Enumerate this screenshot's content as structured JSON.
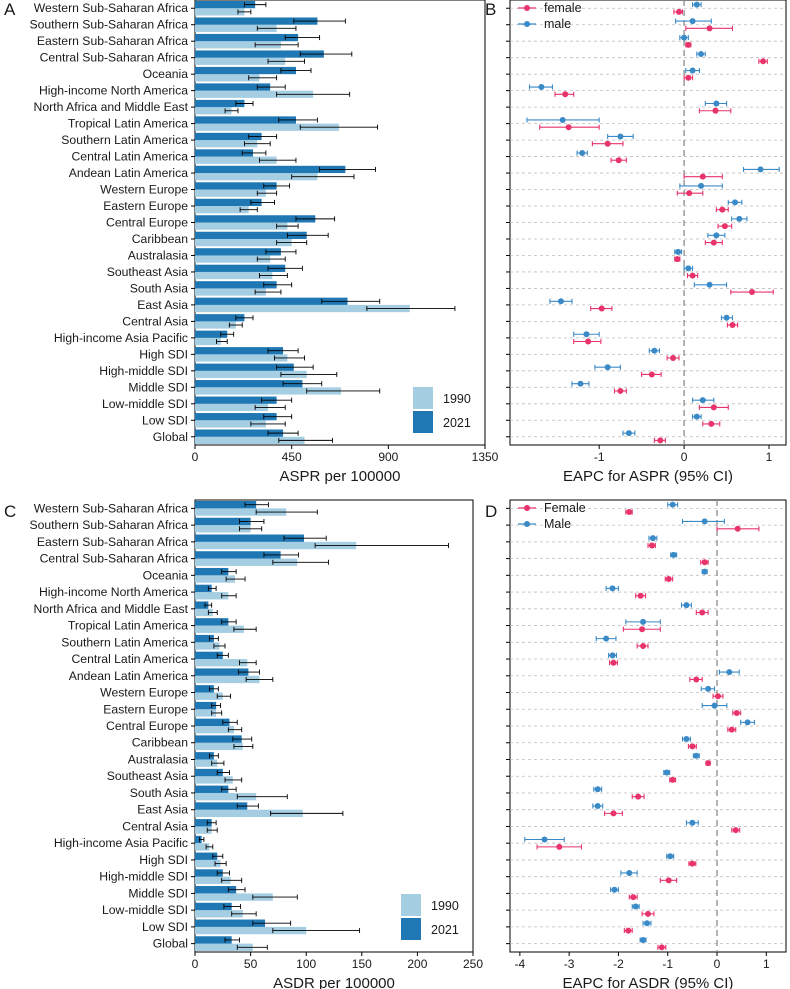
{
  "colors": {
    "bar_1990": "#a6cee3",
    "bar_2021": "#1f78b4",
    "female": "#e8336b",
    "male": "#3a8ac8",
    "gridline": "#bdbdbd",
    "zero_line": "#8c8c8c",
    "text": "#1a1a1a"
  },
  "regions": [
    "Western Sub-Saharan Africa",
    "Southern Sub-Saharan Africa",
    "Eastern Sub-Saharan Africa",
    "Central Sub-Saharan Africa",
    "Oceania",
    "High-income North America",
    "North Africa and Middle East",
    "Tropical Latin America",
    "Southern Latin America",
    "Central Latin America",
    "Andean Latin America",
    "Western Europe",
    "Eastern Europe",
    "Central Europe",
    "Caribbean",
    "Australasia",
    "Southeast Asia",
    "South Asia",
    "East Asia",
    "Central Asia",
    "High-income Asia Pacific",
    "High SDI",
    "High-middle SDI",
    "Middle SDI",
    "Low-middle SDI",
    "Low SDI",
    "Global"
  ],
  "chart_data": [
    {
      "panel": "A",
      "type": "bar",
      "orientation": "horizontal",
      "xlabel": "ASPR per 100000",
      "xlim": [
        0,
        1350
      ],
      "xticks": [
        0,
        450,
        900,
        1350
      ],
      "legend": {
        "title": "",
        "entries": [
          "1990",
          "2021"
        ],
        "position": "bottom-right"
      },
      "series": [
        {
          "name": "1990",
          "values": [
            230,
            380,
            400,
            420,
            300,
            550,
            170,
            670,
            290,
            380,
            570,
            330,
            250,
            430,
            450,
            350,
            360,
            330,
            1000,
            190,
            120,
            430,
            520,
            680,
            340,
            330,
            510
          ],
          "err_low": [
            200,
            290,
            280,
            340,
            250,
            380,
            140,
            490,
            230,
            300,
            450,
            290,
            210,
            380,
            380,
            290,
            300,
            280,
            800,
            160,
            100,
            370,
            400,
            520,
            280,
            260,
            390
          ],
          "err_high": [
            260,
            470,
            480,
            510,
            380,
            720,
            200,
            850,
            350,
            470,
            740,
            380,
            290,
            480,
            520,
            420,
            430,
            400,
            1210,
            220,
            150,
            510,
            660,
            860,
            420,
            420,
            640
          ]
        },
        {
          "name": "2021",
          "values": [
            280,
            570,
            480,
            600,
            470,
            350,
            230,
            470,
            310,
            270,
            700,
            380,
            310,
            560,
            520,
            400,
            420,
            380,
            710,
            230,
            150,
            410,
            460,
            500,
            380,
            380,
            410
          ],
          "err_low": [
            230,
            460,
            420,
            490,
            400,
            290,
            190,
            390,
            250,
            220,
            580,
            320,
            260,
            470,
            430,
            330,
            340,
            320,
            590,
            190,
            120,
            340,
            380,
            410,
            310,
            320,
            340
          ],
          "err_high": [
            330,
            700,
            580,
            730,
            540,
            420,
            270,
            570,
            380,
            330,
            840,
            440,
            370,
            650,
            620,
            470,
            500,
            450,
            860,
            270,
            180,
            480,
            550,
            590,
            450,
            450,
            480
          ]
        }
      ]
    },
    {
      "panel": "B",
      "type": "scatter",
      "xlabel": "EAPC for ASPR (95% CI)",
      "xlim": [
        -2.05,
        1.2
      ],
      "xticks": [
        -1,
        0,
        1
      ],
      "legend": {
        "entries": [
          "female",
          "male"
        ],
        "position": "top-left"
      },
      "series": [
        {
          "name": "female",
          "values": [
            -0.06,
            0.3,
            0.05,
            0.93,
            0.05,
            -1.4,
            0.37,
            -1.36,
            -0.9,
            -0.77,
            0.22,
            0.06,
            0.45,
            0.48,
            0.35,
            -0.08,
            0.1,
            0.8,
            -0.97,
            0.57,
            -1.13,
            -0.13,
            -0.38,
            -0.75,
            0.35,
            0.32,
            -0.28
          ],
          "err_low": [
            -0.12,
            0.02,
            0.02,
            0.88,
            0.0,
            -1.52,
            0.18,
            -1.7,
            -1.08,
            -0.86,
            0.0,
            -0.08,
            0.38,
            0.4,
            0.25,
            -0.11,
            0.04,
            0.55,
            -1.1,
            0.51,
            -1.3,
            -0.2,
            -0.5,
            -0.82,
            0.18,
            0.22,
            -0.35
          ],
          "err_high": [
            -0.02,
            0.57,
            0.08,
            0.98,
            0.1,
            -1.3,
            0.55,
            -1.0,
            -0.72,
            -0.68,
            0.45,
            0.22,
            0.52,
            0.56,
            0.45,
            -0.05,
            0.16,
            1.05,
            -0.85,
            0.63,
            -0.98,
            -0.06,
            -0.27,
            -0.68,
            0.52,
            0.42,
            -0.22
          ]
        },
        {
          "name": "male",
          "values": [
            0.15,
            0.1,
            0.0,
            0.2,
            0.1,
            -1.68,
            0.38,
            -1.43,
            -0.75,
            -1.2,
            0.9,
            0.2,
            0.6,
            0.65,
            0.38,
            -0.07,
            0.05,
            0.3,
            -1.45,
            0.5,
            -1.15,
            -0.35,
            -0.9,
            -1.22,
            0.22,
            0.15,
            -0.65
          ],
          "err_low": [
            0.1,
            -0.1,
            -0.05,
            0.15,
            0.02,
            -1.82,
            0.25,
            -1.85,
            -0.9,
            -1.26,
            0.7,
            -0.05,
            0.52,
            0.56,
            0.28,
            -0.11,
            0.0,
            0.12,
            -1.58,
            0.44,
            -1.3,
            -0.41,
            -1.05,
            -1.32,
            0.1,
            0.1,
            -0.72
          ],
          "err_high": [
            0.2,
            0.32,
            0.05,
            0.25,
            0.18,
            -1.55,
            0.5,
            -1.0,
            -0.6,
            -1.14,
            1.12,
            0.45,
            0.68,
            0.74,
            0.48,
            -0.03,
            0.1,
            0.5,
            -1.32,
            0.57,
            -1.0,
            -0.29,
            -0.75,
            -1.12,
            0.35,
            0.2,
            -0.58
          ]
        }
      ]
    },
    {
      "panel": "C",
      "type": "bar",
      "orientation": "horizontal",
      "xlabel": "ASDR per 100000",
      "xlim": [
        0,
        250
      ],
      "xticks": [
        0,
        50,
        100,
        150,
        200,
        250
      ],
      "legend": {
        "title": "",
        "entries": [
          "1990",
          "2021"
        ],
        "position": "bottom-right"
      },
      "series": [
        {
          "name": "1990",
          "values": [
            82,
            50,
            145,
            92,
            36,
            30,
            16,
            44,
            22,
            47,
            58,
            25,
            19,
            35,
            43,
            20,
            34,
            55,
            97,
            15,
            13,
            23,
            32,
            70,
            43,
            100,
            52
          ],
          "err_low": [
            55,
            40,
            108,
            70,
            28,
            24,
            12,
            35,
            17,
            40,
            46,
            20,
            15,
            30,
            35,
            15,
            27,
            38,
            68,
            11,
            10,
            18,
            24,
            52,
            33,
            70,
            38
          ],
          "err_high": [
            110,
            60,
            228,
            120,
            45,
            37,
            20,
            55,
            27,
            55,
            70,
            32,
            24,
            42,
            52,
            26,
            42,
            83,
            133,
            20,
            16,
            28,
            42,
            92,
            55,
            148,
            65
          ]
        },
        {
          "name": "2021",
          "values": [
            55,
            50,
            98,
            77,
            30,
            15,
            12,
            30,
            17,
            25,
            48,
            17,
            19,
            31,
            42,
            17,
            25,
            30,
            47,
            15,
            6,
            20,
            25,
            37,
            33,
            63,
            33
          ],
          "err_low": [
            45,
            40,
            80,
            62,
            24,
            12,
            9,
            24,
            13,
            20,
            39,
            13,
            15,
            25,
            34,
            13,
            20,
            24,
            38,
            11,
            4,
            16,
            20,
            30,
            26,
            52,
            27
          ],
          "err_high": [
            66,
            62,
            118,
            93,
            37,
            19,
            15,
            37,
            21,
            30,
            58,
            21,
            23,
            38,
            51,
            21,
            31,
            37,
            57,
            19,
            8,
            25,
            31,
            45,
            41,
            86,
            40
          ]
        }
      ]
    },
    {
      "panel": "D",
      "type": "scatter",
      "xlabel": "EAPC for ASDR (95% CI)",
      "xlim": [
        -4.2,
        1.4
      ],
      "xticks": [
        -4,
        -3,
        -2,
        -1,
        0,
        1
      ],
      "legend": {
        "entries": [
          "Female",
          "Male"
        ],
        "position": "top-left"
      },
      "series": [
        {
          "name": "Female",
          "values": [
            -1.78,
            0.42,
            -1.32,
            -0.25,
            -0.98,
            -1.55,
            -0.3,
            -1.52,
            -1.5,
            -2.1,
            -0.42,
            0.02,
            0.4,
            0.3,
            -0.5,
            -0.18,
            -0.9,
            -1.6,
            -2.1,
            0.38,
            -3.2,
            -0.5,
            -0.98,
            -1.7,
            -1.4,
            -1.8,
            -1.12
          ],
          "err_low": [
            -1.85,
            0.0,
            -1.4,
            -0.33,
            -1.05,
            -1.65,
            -0.42,
            -1.9,
            -1.62,
            -2.18,
            -0.55,
            -0.08,
            0.32,
            0.22,
            -0.58,
            -0.22,
            -0.96,
            -1.72,
            -2.28,
            0.3,
            -3.65,
            -0.57,
            -1.15,
            -1.78,
            -1.52,
            -1.88,
            -1.2
          ],
          "err_high": [
            -1.72,
            0.85,
            -1.25,
            -0.18,
            -0.9,
            -1.45,
            -0.18,
            -1.15,
            -1.4,
            -2.02,
            -0.3,
            0.12,
            0.48,
            0.38,
            -0.42,
            -0.14,
            -0.84,
            -1.48,
            -1.92,
            0.46,
            -2.75,
            -0.43,
            -0.82,
            -1.62,
            -1.28,
            -1.72,
            -1.04
          ]
        },
        {
          "name": "Male",
          "values": [
            -0.9,
            -0.25,
            -1.3,
            -0.88,
            -0.25,
            -2.12,
            -0.62,
            -1.5,
            -2.25,
            -2.12,
            0.25,
            -0.18,
            -0.05,
            0.62,
            -0.62,
            -0.42,
            -1.02,
            -2.42,
            -2.42,
            -0.5,
            -3.5,
            -0.95,
            -1.78,
            -2.08,
            -1.65,
            -1.42,
            -1.5
          ],
          "err_low": [
            -1.0,
            -0.7,
            -1.38,
            -0.94,
            -0.3,
            -2.25,
            -0.72,
            -1.85,
            -2.45,
            -2.2,
            0.05,
            -0.32,
            -0.3,
            0.48,
            -0.7,
            -0.48,
            -1.08,
            -2.5,
            -2.52,
            -0.62,
            -3.9,
            -1.02,
            -1.95,
            -2.16,
            -1.72,
            -1.5,
            -1.56
          ],
          "err_high": [
            -0.8,
            0.15,
            -1.22,
            -0.82,
            -0.2,
            -2.0,
            -0.52,
            -1.15,
            -2.05,
            -2.04,
            0.45,
            -0.05,
            0.2,
            0.76,
            -0.54,
            -0.36,
            -0.96,
            -2.34,
            -2.32,
            -0.38,
            -3.1,
            -0.88,
            -1.62,
            -2.0,
            -1.58,
            -1.34,
            -1.44
          ]
        }
      ]
    }
  ]
}
